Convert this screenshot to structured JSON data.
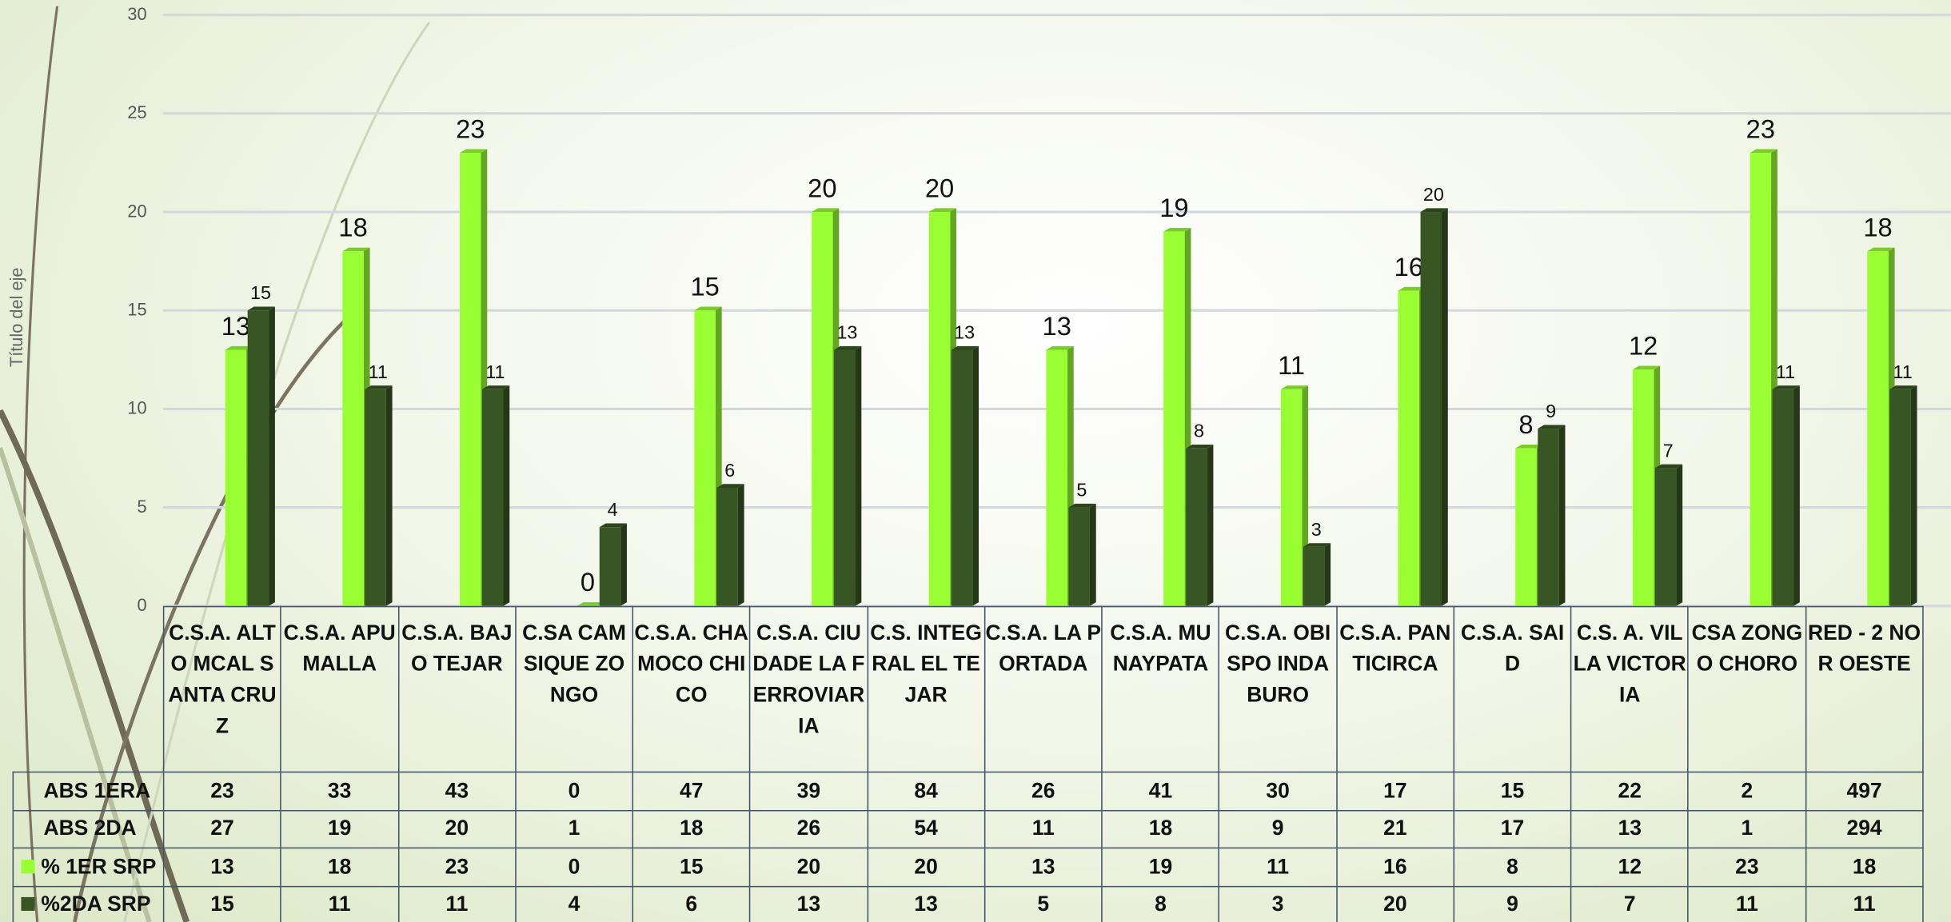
{
  "chart_data": {
    "type": "bar",
    "y_label": "Título del eje",
    "categories": [
      "C.S.A. ALTO MCAL SANTA CRUZ",
      "C.S.A. APUMALLA",
      "C.S.A. BAJO TEJAR",
      "C.SA CAMSIQUE ZONGO",
      "C.S.A. CHAMOCO CHICO",
      "C.S.A. CIUDADE LA FERROVIARIA",
      "C.S. INTEGRAL EL TEJAR",
      "C.S.A. LA PORTADA",
      "C.S.A. MUNAYPATA",
      "C.S.A. OBISPO INDABURO",
      "C.S.A. PANTICIRCA",
      "C.S.A. SAID",
      "C.S. A. VILLA VICTORIA",
      "CSA ZONGO CHORO",
      "RED - 2 NOR OESTE"
    ],
    "series": [
      {
        "name": "% 1ER  SRP",
        "color": "#99ff33",
        "values": [
          13,
          18,
          23,
          0,
          15,
          20,
          20,
          13,
          19,
          11,
          16,
          8,
          12,
          23,
          18
        ]
      },
      {
        "name": "%2DA SRP",
        "color": "#375623",
        "values": [
          15,
          11,
          11,
          4,
          6,
          13,
          13,
          5,
          8,
          3,
          20,
          9,
          7,
          11,
          11
        ]
      }
    ],
    "table_rows": [
      {
        "label": "ABS 1ERA",
        "values": [
          23,
          33,
          43,
          0,
          47,
          39,
          84,
          26,
          41,
          30,
          17,
          15,
          22,
          2,
          497
        ]
      },
      {
        "label": "ABS 2DA",
        "values": [
          27,
          19,
          20,
          1,
          18,
          26,
          54,
          11,
          18,
          9,
          21,
          17,
          13,
          1,
          294
        ]
      }
    ],
    "ylim": [
      0,
      30
    ],
    "yticks": [
      0,
      5,
      10,
      15,
      20,
      25,
      30
    ],
    "grid": true
  }
}
